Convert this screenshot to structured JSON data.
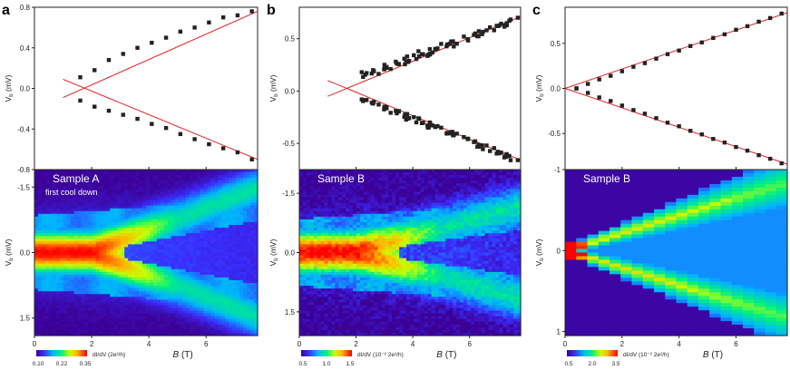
{
  "panels": [
    {
      "letter": "a",
      "top": {
        "ylabel_main": "V",
        "ylabel_sub": "b",
        "ylabel_unit": "(mV)",
        "ylim": [
          -0.8,
          0.8
        ],
        "yticks": [
          0.8,
          0.4,
          0.0,
          -0.4,
          -0.8
        ],
        "ytick_labels": [
          "0.8",
          "0.4",
          "0.0",
          "-0.4",
          "-0.8"
        ]
      },
      "bottom": {
        "sample_label": "Sample A",
        "note": "first cool down",
        "ylabel_main": "V",
        "ylabel_sub": "b",
        "ylabel_unit": "(mV)",
        "ylim": [
          -1.9,
          1.9
        ],
        "yticks": [
          -1.5,
          0.0,
          1.5
        ],
        "ytick_labels": [
          "-1.5",
          "0.0",
          "1.5"
        ]
      },
      "xlim": [
        0,
        7.8
      ],
      "xticks": [
        0,
        2,
        4,
        6
      ],
      "xtick_labels": [
        "0",
        "2",
        "4",
        "6"
      ],
      "xlabel_main": "B",
      "xlabel_unit": "(T)",
      "colorbar": {
        "ticks": [
          "0.10",
          "0.22",
          "0.35"
        ],
        "label": "dI/dV (2e²/h)"
      }
    },
    {
      "letter": "b",
      "top": {
        "ylabel_main": "V",
        "ylabel_sub": "b",
        "ylabel_unit": "(mV)",
        "ylim": [
          -0.75,
          0.8
        ],
        "yticks": [
          0.5,
          0.0,
          -0.5
        ],
        "ytick_labels": [
          "0.5",
          "0.0",
          "-0.5"
        ]
      },
      "bottom": {
        "sample_label": "Sample B",
        "note": "",
        "ylabel_main": "V",
        "ylabel_sub": "b",
        "ylabel_unit": "(mV)",
        "ylim": [
          -2.1,
          2.1
        ],
        "yticks": [
          -1.5,
          0.0,
          1.5
        ],
        "ytick_labels": [
          "-1.5",
          "0.0",
          "1.5"
        ]
      },
      "xlim": [
        0,
        7.8
      ],
      "xticks": [
        0,
        2,
        4,
        6
      ],
      "xtick_labels": [
        "0",
        "2",
        "4",
        "6"
      ],
      "xlabel_main": "B",
      "xlabel_unit": "(T)",
      "colorbar": {
        "ticks": [
          "0.5",
          "1.0",
          "1.5"
        ],
        "label": "dI/dV (10⁻² 2e²/h)"
      }
    },
    {
      "letter": "c",
      "top": {
        "ylabel_main": "V",
        "ylabel_sub": "b",
        "ylabel_unit": "(mV)",
        "ylim": [
          -0.9,
          0.9
        ],
        "yticks": [
          0.5,
          0.0,
          -0.5
        ],
        "ytick_labels": [
          "0.5",
          "0.0",
          "-0.5"
        ]
      },
      "bottom": {
        "sample_label": "Sample B",
        "note": "",
        "ylabel_main": "V",
        "ylabel_sub": "b",
        "ylabel_unit": "(mV)",
        "ylim": [
          -1.0,
          1.05
        ],
        "yticks": [
          -1,
          0,
          1
        ],
        "ytick_labels": [
          "-1",
          "0",
          "1"
        ]
      },
      "xlim": [
        0,
        7.8
      ],
      "xticks": [
        0,
        2,
        4,
        6
      ],
      "xtick_labels": [
        "0",
        "2",
        "4",
        "6"
      ],
      "xlabel_main": "B",
      "xlabel_unit": "(T)",
      "colorbar": {
        "ticks": [
          "0.5",
          "2.0",
          "3.5"
        ],
        "label": "dI/dV (10⁻² 2e²/h)"
      }
    }
  ],
  "chart_data": [
    {
      "panel": "a-top",
      "type": "scatter",
      "x": [
        1.6,
        2.1,
        2.6,
        3.1,
        3.6,
        4.1,
        4.6,
        5.1,
        5.6,
        6.1,
        6.6,
        7.1,
        7.6
      ],
      "series": [
        {
          "values": [
            0.11,
            0.18,
            0.28,
            0.34,
            0.4,
            0.45,
            0.5,
            0.56,
            0.6,
            0.65,
            0.7,
            0.72,
            0.76
          ]
        },
        {
          "values": [
            -0.12,
            -0.18,
            -0.22,
            -0.26,
            -0.3,
            -0.35,
            -0.39,
            -0.45,
            -0.5,
            -0.55,
            -0.59,
            -0.63,
            -0.7
          ]
        }
      ],
      "fit_lines": [
        {
          "x": [
            1.0,
            7.8
          ],
          "y": [
            -0.09,
            0.76
          ]
        },
        {
          "x": [
            1.0,
            7.8
          ],
          "y": [
            0.09,
            -0.7
          ]
        }
      ]
    },
    {
      "panel": "b-top",
      "type": "scatter",
      "x": [
        2.2,
        2.6,
        3.0,
        3.4,
        3.8,
        4.2,
        4.6,
        5.0,
        5.4,
        5.8,
        6.2,
        6.6,
        7.0,
        7.4,
        7.7
      ],
      "series": [
        {
          "values": [
            0.18,
            0.2,
            0.25,
            0.28,
            0.33,
            0.38,
            0.4,
            0.45,
            0.47,
            0.52,
            0.55,
            0.58,
            0.62,
            0.67,
            0.7
          ]
        },
        {
          "values": [
            -0.08,
            -0.12,
            -0.15,
            -0.19,
            -0.22,
            -0.26,
            -0.3,
            -0.35,
            -0.39,
            -0.44,
            -0.48,
            -0.52,
            -0.58,
            -0.62,
            -0.66
          ]
        }
      ],
      "fit_lines": [
        {
          "x": [
            1.0,
            7.8
          ],
          "y": [
            -0.05,
            0.71
          ]
        },
        {
          "x": [
            1.0,
            7.8
          ],
          "y": [
            0.1,
            -0.66
          ]
        }
      ]
    },
    {
      "panel": "c-top",
      "type": "scatter",
      "x": [
        0.4,
        0.8,
        1.2,
        1.6,
        2.0,
        2.4,
        2.8,
        3.2,
        3.6,
        4.0,
        4.4,
        4.8,
        5.2,
        5.6,
        6.0,
        6.4,
        6.8,
        7.2,
        7.6
      ],
      "series": [
        {
          "values": [
            0.0,
            0.05,
            0.1,
            0.14,
            0.19,
            0.24,
            0.28,
            0.33,
            0.38,
            0.42,
            0.47,
            0.51,
            0.56,
            0.6,
            0.65,
            0.69,
            0.74,
            0.78,
            0.83
          ]
        },
        {
          "values": [
            0.0,
            -0.05,
            -0.1,
            -0.14,
            -0.19,
            -0.24,
            -0.28,
            -0.33,
            -0.38,
            -0.42,
            -0.47,
            -0.51,
            -0.56,
            -0.6,
            -0.65,
            -0.69,
            -0.74,
            -0.78,
            -0.83
          ]
        }
      ],
      "fit_lines": [
        {
          "x": [
            0.0,
            7.8
          ],
          "y": [
            0.0,
            0.84
          ]
        },
        {
          "x": [
            0.0,
            7.8
          ],
          "y": [
            0.0,
            -0.84
          ]
        }
      ]
    },
    {
      "panel": "a-bottom",
      "type": "heatmap",
      "zero_bias_peak_until_B": 2.0,
      "split_slope_mV_per_T": 0.11,
      "value_range": [
        0.1,
        0.35
      ]
    },
    {
      "panel": "b-bottom",
      "type": "heatmap",
      "zero_bias_peak_until_B": 2.0,
      "split_slope_mV_per_T": 0.1,
      "value_range": [
        0.5,
        1.5
      ]
    },
    {
      "panel": "c-bottom",
      "type": "heatmap",
      "zero_bias_peak_until_B": 0.5,
      "split_slope_mV_per_T": 0.11,
      "value_range": [
        0.5,
        3.5
      ]
    }
  ]
}
